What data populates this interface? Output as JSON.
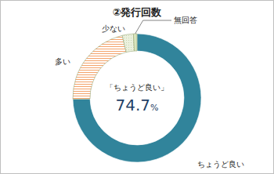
{
  "chart_data": {
    "type": "donut",
    "title": "②発行回数",
    "categories": [
      "ちょうど良い",
      "多い",
      "少ない",
      "無回答"
    ],
    "values": [
      74.7,
      21.6,
      2.8,
      0.9
    ],
    "colors": [
      "#31849b",
      "#f4a36b",
      "#ebf1de",
      "#d8e4bc"
    ],
    "annotations": [
      "「ちょうど良い」",
      "74.7%"
    ]
  }
}
